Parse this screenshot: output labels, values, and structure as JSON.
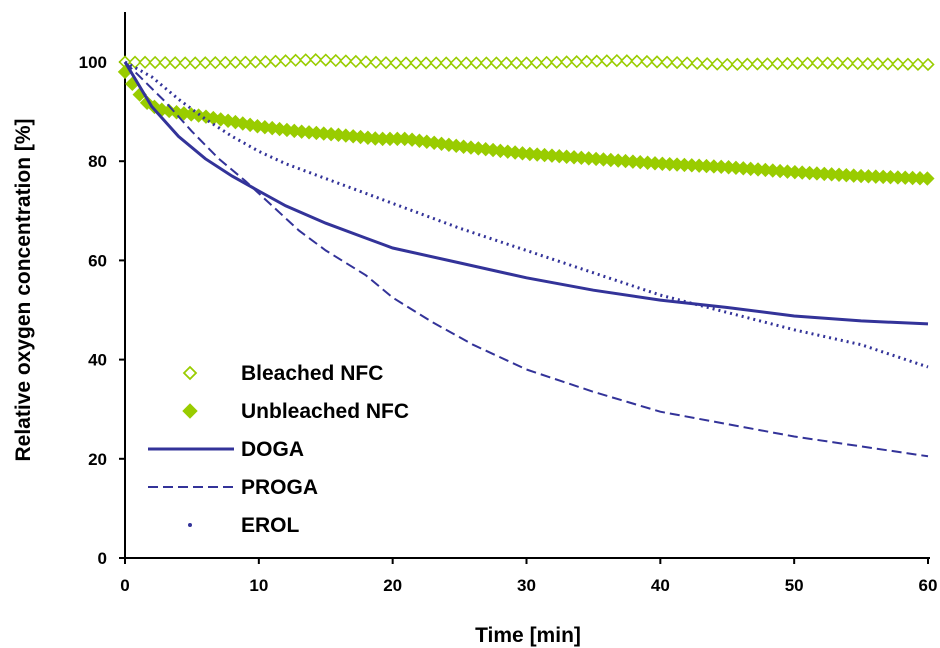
{
  "chart_data": {
    "type": "line",
    "title": "",
    "xlabel": "Time [min]",
    "ylabel": "Relative oxygen concentration [%]",
    "xlim": [
      0,
      60
    ],
    "ylim": [
      0,
      100
    ],
    "xticks": [
      "0",
      "10",
      "20",
      "30",
      "40",
      "50",
      "60"
    ],
    "yticks": [
      "0",
      "20",
      "40",
      "60",
      "80",
      "100"
    ],
    "grid": false,
    "legend_position": "lower-left",
    "colors": {
      "green": "#99cc00",
      "blue": "#333399"
    },
    "series": [
      {
        "name": "Bleached NFC",
        "style": "open-diamond",
        "color": "#99cc00",
        "x": [
          0,
          5,
          10,
          14,
          20,
          30,
          37,
          45,
          52,
          60
        ],
        "y": [
          100,
          99.8,
          100,
          100.5,
          99.8,
          99.8,
          100.3,
          99.5,
          99.8,
          99.5
        ]
      },
      {
        "name": "Unbleached NFC",
        "style": "filled-diamond",
        "color": "#99cc00",
        "x": [
          0,
          0.8,
          1.5,
          2.5,
          4,
          6,
          8,
          10,
          13,
          16,
          19,
          21,
          25,
          30,
          35,
          40,
          45,
          50,
          55,
          60
        ],
        "y": [
          98,
          94.5,
          92,
          90.5,
          89.8,
          89,
          88,
          87,
          86,
          85.3,
          84.5,
          84.5,
          83,
          81.5,
          80.5,
          79.5,
          78.8,
          77.8,
          77,
          76.5
        ]
      },
      {
        "name": "DOGA",
        "style": "solid",
        "color": "#333399",
        "x": [
          0,
          2,
          4,
          6,
          8,
          10,
          12,
          15,
          18,
          20,
          25,
          30,
          35,
          40,
          45,
          50,
          55,
          60
        ],
        "y": [
          100,
          91,
          85,
          80.5,
          77,
          74,
          71,
          67.5,
          64.5,
          62.5,
          59.5,
          56.5,
          54,
          52,
          50.5,
          48.8,
          47.8,
          47.2
        ]
      },
      {
        "name": "PROGA",
        "style": "dashed",
        "color": "#333399",
        "x": [
          0,
          3,
          5,
          7,
          9,
          11,
          13,
          15,
          18,
          20,
          23,
          26,
          30,
          35,
          40,
          45,
          50,
          55,
          60
        ],
        "y": [
          100,
          92,
          86,
          80.5,
          76,
          71,
          66,
          62,
          57,
          52.5,
          47.5,
          43,
          38,
          33.5,
          29.5,
          27,
          24.5,
          22.5,
          20.5
        ]
      },
      {
        "name": "EROL",
        "style": "dotted",
        "color": "#333399",
        "x": [
          0,
          2,
          4,
          6,
          8,
          10,
          12,
          15,
          18,
          20,
          25,
          30,
          35,
          40,
          45,
          50,
          55,
          60
        ],
        "y": [
          100,
          97,
          92.5,
          88.5,
          85,
          82,
          79.5,
          76.5,
          73.5,
          71.5,
          66.5,
          62,
          57.5,
          53,
          49.5,
          46,
          43,
          38.5
        ]
      }
    ]
  }
}
